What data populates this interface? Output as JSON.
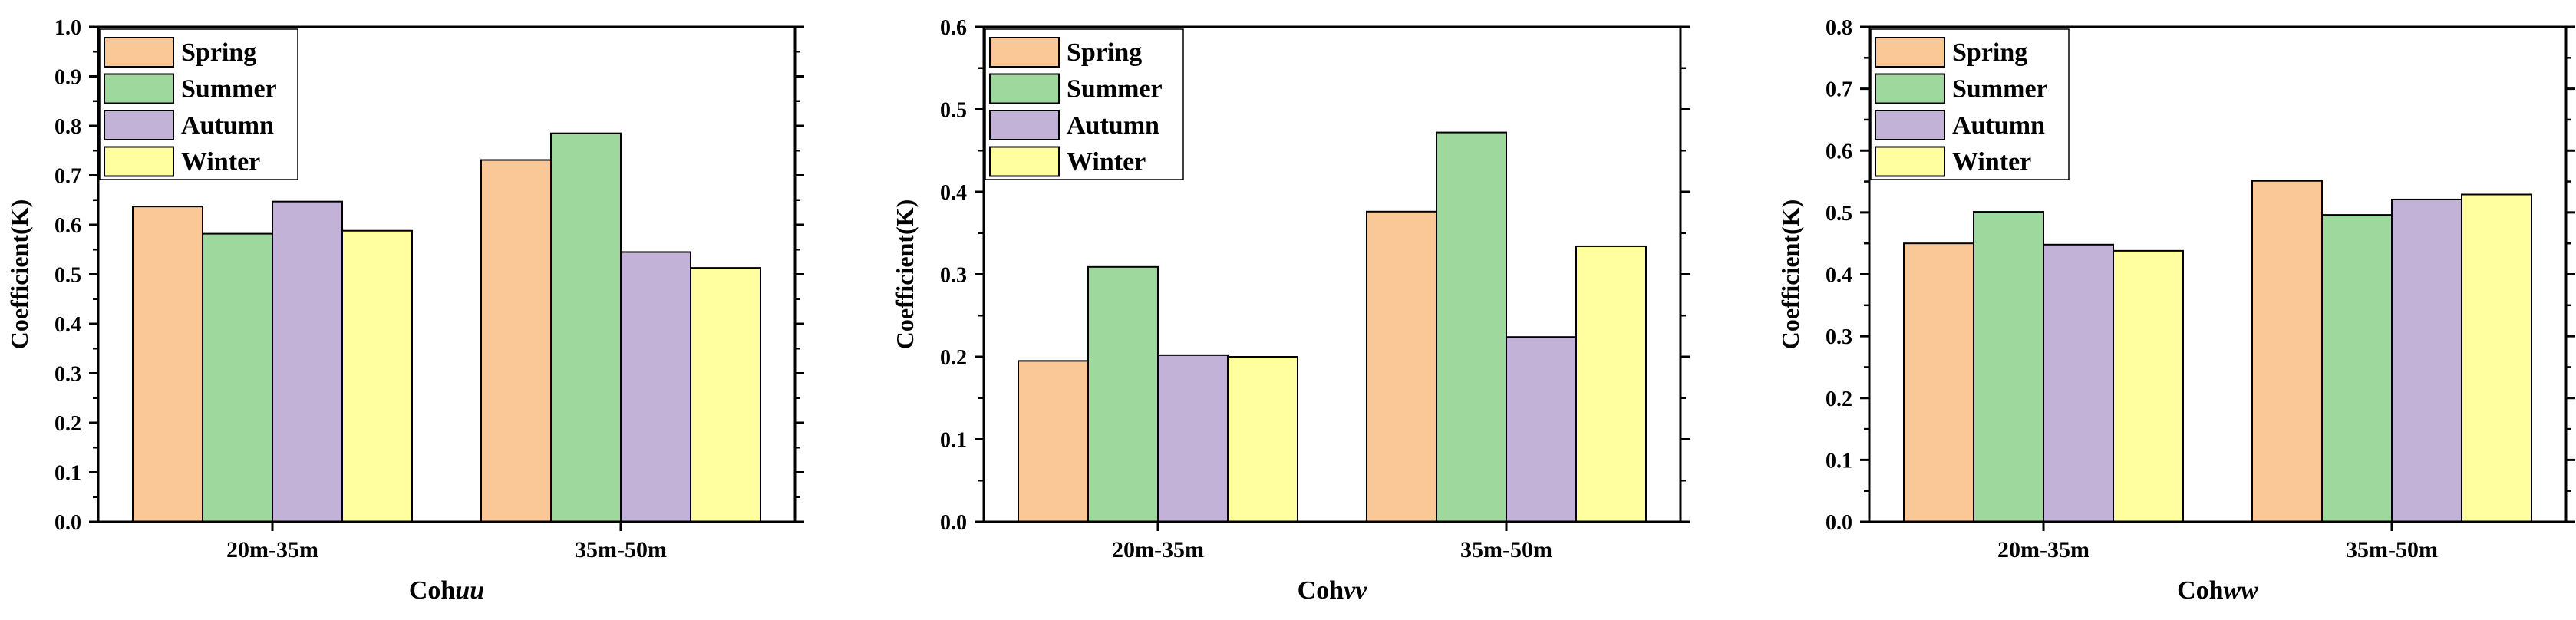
{
  "colors": {
    "Spring": "#FAC896",
    "Summer": "#9ED89C",
    "Autumn": "#C2B2D8",
    "Winter": "#FFFFA0"
  },
  "chart_data": [
    {
      "type": "bar",
      "categories": [
        "20m-35m",
        "35m-50m"
      ],
      "series": [
        {
          "name": "Spring",
          "values": [
            0.637,
            0.731
          ]
        },
        {
          "name": "Summer",
          "values": [
            0.582,
            0.785
          ]
        },
        {
          "name": "Autumn",
          "values": [
            0.647,
            0.545
          ]
        },
        {
          "name": "Winter",
          "values": [
            0.588,
            0.513
          ]
        }
      ],
      "xlabel_prefix": "Coh",
      "xlabel_italic": "uu",
      "ylabel": "Coefficient(K)",
      "ylim": [
        0,
        1.0
      ],
      "yticks": [
        "0.0",
        "0.1",
        "0.2",
        "0.3",
        "0.4",
        "0.5",
        "0.6",
        "0.7",
        "0.8",
        "0.9",
        "1.0"
      ],
      "legend": "top-left",
      "grid": false
    },
    {
      "type": "bar",
      "categories": [
        "20m-35m",
        "35m-50m"
      ],
      "series": [
        {
          "name": "Spring",
          "values": [
            0.195,
            0.376
          ]
        },
        {
          "name": "Summer",
          "values": [
            0.309,
            0.472
          ]
        },
        {
          "name": "Autumn",
          "values": [
            0.202,
            0.224
          ]
        },
        {
          "name": "Winter",
          "values": [
            0.2,
            0.334
          ]
        }
      ],
      "xlabel_prefix": "Coh",
      "xlabel_italic": "vv",
      "ylabel": "Coefficient(K)",
      "ylim": [
        0,
        0.6
      ],
      "yticks": [
        "0.0",
        "0.1",
        "0.2",
        "0.3",
        "0.4",
        "0.5",
        "0.6"
      ],
      "legend": "top-left",
      "grid": false
    },
    {
      "type": "bar",
      "categories": [
        "20m-35m",
        "35m-50m"
      ],
      "series": [
        {
          "name": "Spring",
          "values": [
            0.45,
            0.551
          ]
        },
        {
          "name": "Summer",
          "values": [
            0.501,
            0.496
          ]
        },
        {
          "name": "Autumn",
          "values": [
            0.448,
            0.521
          ]
        },
        {
          "name": "Winter",
          "values": [
            0.438,
            0.529
          ]
        }
      ],
      "xlabel_prefix": "Coh",
      "xlabel_italic": "ww",
      "ylabel": "Coefficient(K)",
      "ylim": [
        0,
        0.8
      ],
      "yticks": [
        "0.0",
        "0.1",
        "0.2",
        "0.3",
        "0.4",
        "0.5",
        "0.6",
        "0.7",
        "0.8"
      ],
      "legend": "top-left",
      "grid": false
    }
  ]
}
